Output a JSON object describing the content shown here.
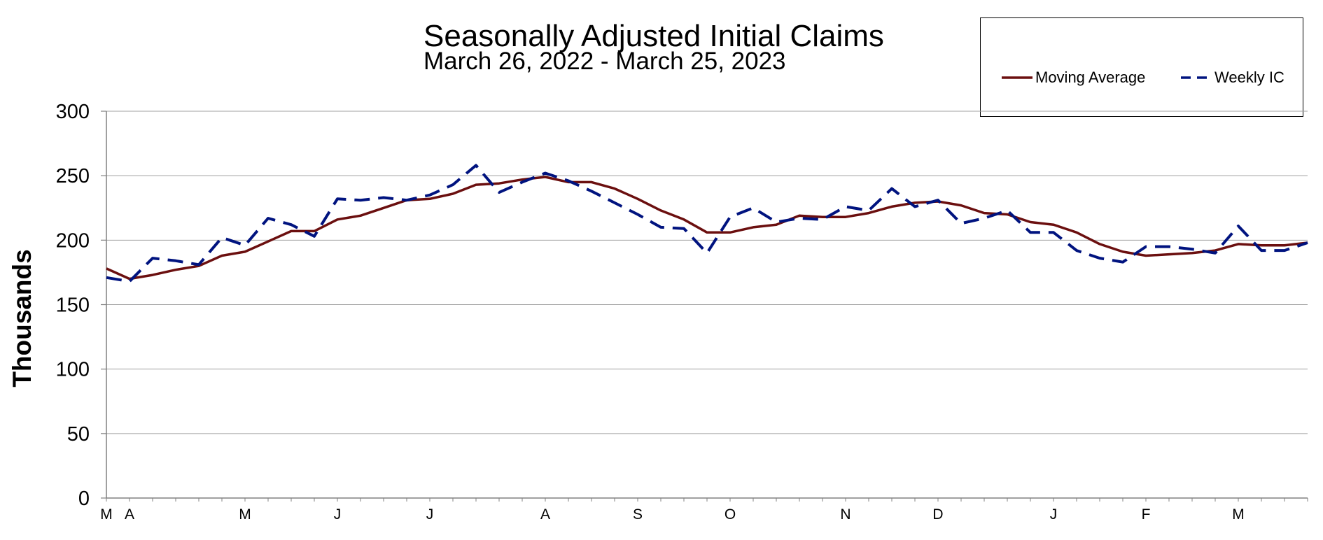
{
  "colors": {
    "moving_average": "#6b0f0f",
    "weekly_ic": "#00137f",
    "grid": "#a0a0a0",
    "axis": "#808080"
  },
  "chart_data": {
    "type": "line",
    "title": "Seasonally Adjusted Initial Claims",
    "subtitle": "March 26, 2022 - March 25, 2023",
    "xlabel": "",
    "ylabel": "Thousands",
    "ylim": [
      0,
      300
    ],
    "yticks": [
      0,
      50,
      100,
      150,
      200,
      250,
      300
    ],
    "grid": true,
    "legend_position": "top-right",
    "x_tick_labels": [
      "M",
      "A",
      "M",
      "J",
      "J",
      "A",
      "S",
      "O",
      "N",
      "D",
      "J",
      "F",
      "M"
    ],
    "x_tick_weeks": [
      0,
      1,
      6,
      10,
      14,
      19,
      23,
      27,
      32,
      36,
      41,
      45,
      49
    ],
    "series": [
      {
        "name": "Moving Average",
        "style": "solid",
        "values": [
          178,
          170,
          173,
          177,
          180,
          188,
          191,
          199,
          207,
          207,
          216,
          219,
          225,
          231,
          232,
          236,
          243,
          244,
          247,
          249,
          245,
          245,
          240,
          232,
          223,
          216,
          206,
          206,
          210,
          212,
          219,
          218,
          218,
          221,
          226,
          229,
          230,
          227,
          221,
          220,
          214,
          212,
          206,
          197,
          191,
          188,
          189,
          190,
          192,
          197,
          196,
          196,
          198
        ]
      },
      {
        "name": "Weekly IC",
        "style": "dashed",
        "values": [
          171,
          168,
          186,
          184,
          181,
          202,
          196,
          217,
          212,
          203,
          232,
          231,
          233,
          231,
          235,
          243,
          258,
          237,
          245,
          252,
          246,
          238,
          229,
          220,
          210,
          209,
          190,
          218,
          225,
          214,
          217,
          216,
          226,
          223,
          240,
          226,
          231,
          213,
          217,
          223,
          206,
          206,
          192,
          186,
          183,
          195,
          195,
          193,
          190,
          211,
          192,
          192,
          198
        ]
      }
    ]
  }
}
